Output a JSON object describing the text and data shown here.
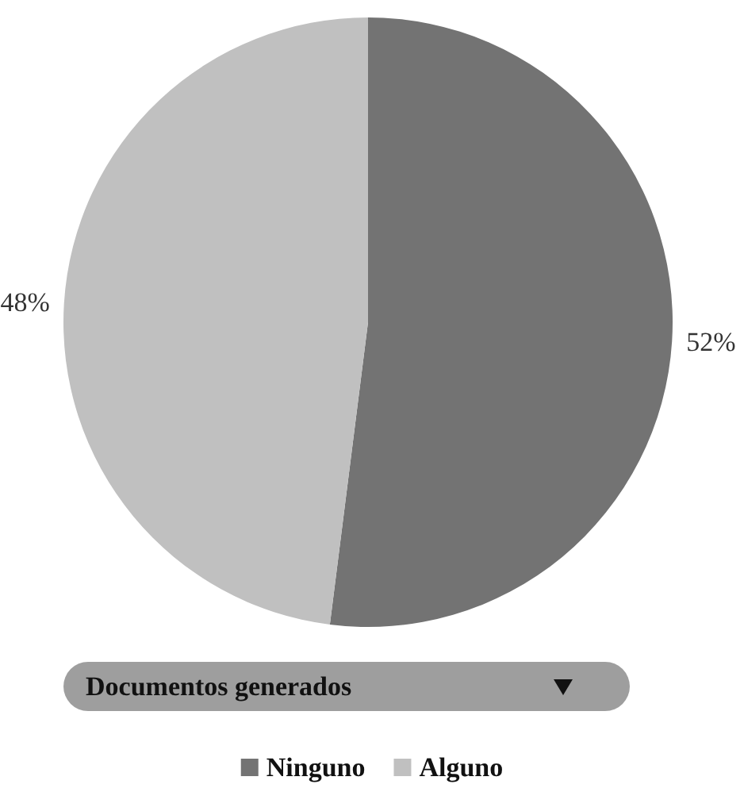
{
  "chart_data": {
    "type": "pie",
    "legend_title": "Documentos generados",
    "categories": [
      "Ninguno",
      "Alguno"
    ],
    "values": [
      52,
      48
    ],
    "value_labels": [
      "52%",
      "48%"
    ],
    "colors": [
      "#737373",
      "#c0c0c0"
    ],
    "legend": "bottom"
  }
}
